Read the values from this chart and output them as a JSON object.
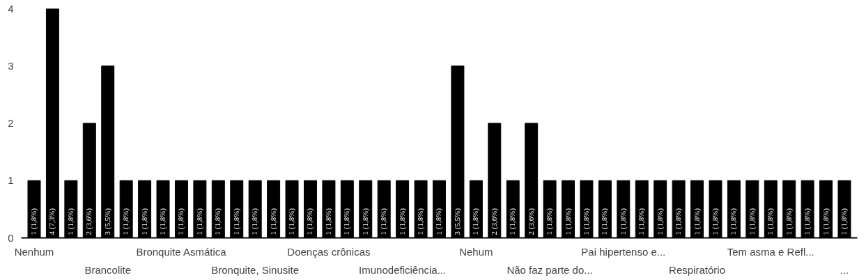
{
  "chart_data": {
    "type": "bar",
    "categories": [
      "Nenhum",
      null,
      null,
      null,
      "Brancolite",
      null,
      null,
      null,
      "Bronquite Asmática",
      null,
      null,
      null,
      "Bronquite, Sinusite",
      null,
      null,
      null,
      "Doenças crônicas",
      null,
      null,
      null,
      "Imunodeficiência...",
      null,
      null,
      null,
      "Nehum",
      null,
      null,
      null,
      "Não faz parte do...",
      null,
      null,
      null,
      "Pai hipertenso e...",
      null,
      null,
      null,
      "Respiratório",
      null,
      null,
      null,
      "Tem asma e Refl...",
      null,
      null,
      null,
      "..."
    ],
    "values": [
      1,
      4,
      1,
      2,
      3,
      1,
      1,
      1,
      1,
      1,
      1,
      1,
      1,
      1,
      1,
      1,
      1,
      1,
      1,
      1,
      1,
      1,
      1,
      3,
      1,
      2,
      1,
      2,
      1,
      1,
      1,
      1,
      1,
      1,
      1,
      1,
      1,
      1,
      1,
      1,
      1,
      1,
      1,
      1,
      1
    ],
    "value_labels": [
      "1 (1,8%)",
      "4 (7,3%)",
      "1 (1,8%)",
      "2 (3,6%)",
      "3 (5,5%)",
      "1 (1,8%)",
      "1 (1,8%)",
      "1 (1,8%)",
      "1 (1,8%)",
      "1 (1,8%)",
      "1 (1,8%)",
      "1 (1,8%)",
      "1 (1,8%)",
      "1 (1,8%)",
      "1 (1,8%)",
      "1 (1,8%)",
      "1 (1,8%)",
      "1 (1,8%)",
      "1 (1,8%)",
      "1 (1,8%)",
      "1 (1,8%)",
      "1 (1,8%)",
      "1 (1,8%)",
      "3 (5,5%)",
      "1 (1,8%)",
      "2 (3,6%)",
      "1 (1,8%)",
      "2 (3,6%)",
      "1 (1,8%)",
      "1 (1,8%)",
      "1 (1,8%)",
      "1 (1,8%)",
      "1 (1,8%)",
      "1 (1,8%)",
      "1 (1,8%)",
      "1 (1,8%)",
      "1 (1,8%)",
      "1 (1,8%)",
      "1 (1,8%)",
      "1 (1,8%)",
      "1 (1,8%)",
      "1 (1,8%)",
      "1 (1,8%)",
      "1 (1,8%)",
      "1 (1,8%)"
    ],
    "color": "#000000",
    "ylim": [
      0,
      4
    ],
    "yticks": [
      0,
      1,
      2,
      3,
      4
    ],
    "grid": false
  }
}
